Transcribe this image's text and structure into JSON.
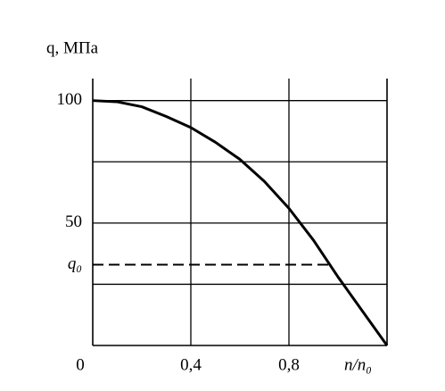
{
  "chart_data": {
    "type": "line",
    "y_label": "q, МПа",
    "x_label": "n/n₀",
    "x": [
      0,
      0.1,
      0.2,
      0.3,
      0.4,
      0.5,
      0.6,
      0.7,
      0.8,
      0.9,
      1.0,
      1.1,
      1.2
    ],
    "series": [
      {
        "color": "#000000",
        "values": [
          100,
          99.5,
          97.5,
          93.5,
          89,
          83,
          76,
          67,
          56,
          43,
          28,
          14,
          0
        ]
      }
    ],
    "xlim": [
      0,
      1.2
    ],
    "ylim": [
      0,
      109
    ],
    "xticks": [
      0,
      {
        "value": 0.4,
        "label": "0,4"
      },
      {
        "value": 0.8,
        "label": "0,8"
      }
    ],
    "yticks": [
      {
        "value": 33,
        "label": "q₀"
      },
      50,
      100
    ],
    "xgrid": [
      0.4,
      0.8
    ],
    "ygrid": [
      25,
      50,
      75,
      100
    ],
    "hlines": [
      {
        "y": 33,
        "xlim": [
          0,
          0.97
        ],
        "style": "dashed"
      }
    ]
  }
}
